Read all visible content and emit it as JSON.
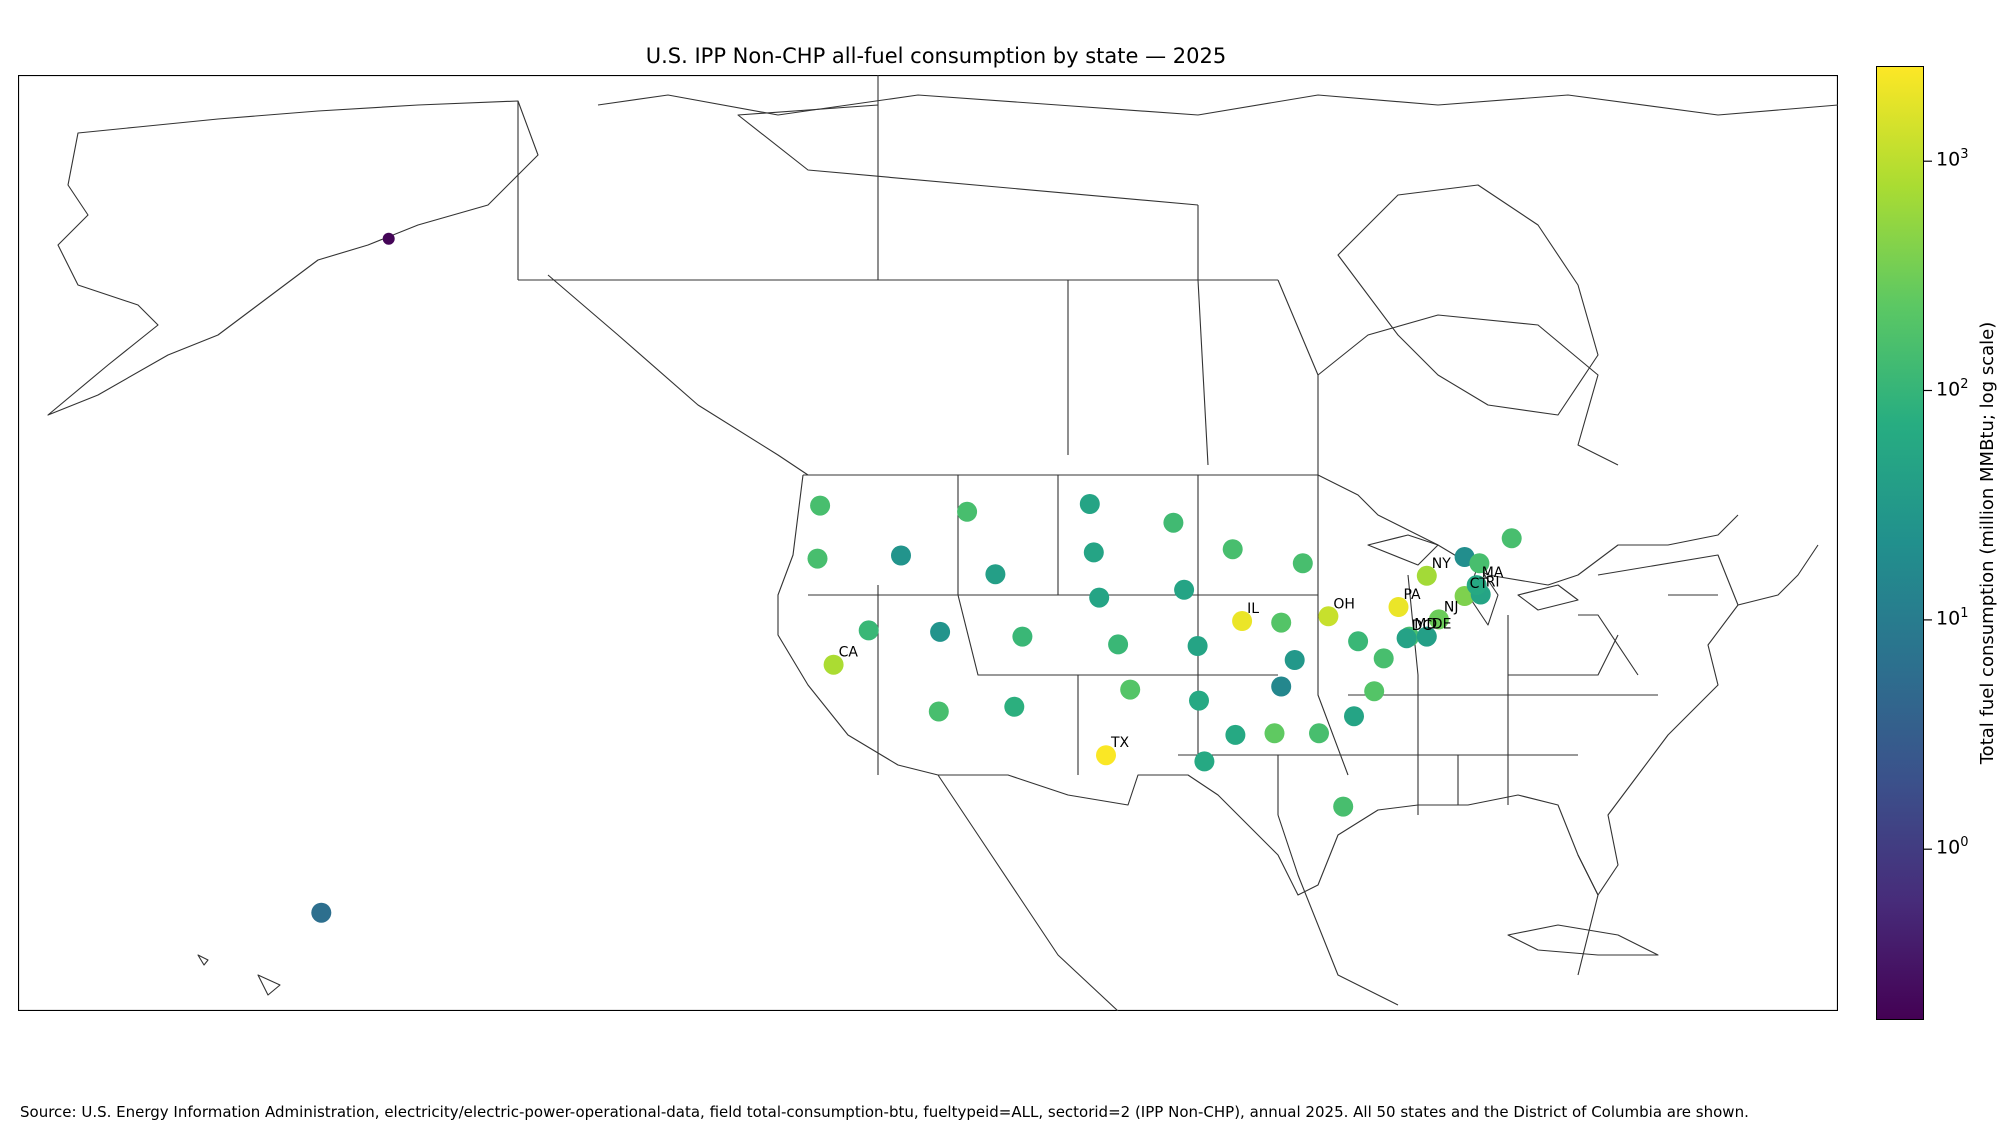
{
  "chart_data": {
    "type": "scatter",
    "title": "U.S. IPP Non-CHP all-fuel consumption by state — 2025",
    "colorbar": {
      "label": "Total fuel consumption (million MMBtu; log scale)",
      "scale": "log",
      "range": [
        0.18,
        2600
      ],
      "colormap": "viridis",
      "ticks": [
        {
          "base": "10",
          "exp": "0",
          "value": 1
        },
        {
          "base": "10",
          "exp": "1",
          "value": 10
        },
        {
          "base": "10",
          "exp": "2",
          "value": 100
        },
        {
          "base": "10",
          "exp": "3",
          "value": 1000
        }
      ]
    },
    "points": [
      {
        "state": "AK",
        "label": "",
        "lon": -152.5,
        "lat": 64.5,
        "value": 0.2
      },
      {
        "state": "HI",
        "label": "",
        "lon": -157.5,
        "lat": 21.3,
        "value": 6
      },
      {
        "state": "WA",
        "label": "",
        "lon": -120.5,
        "lat": 47.4,
        "value": 150
      },
      {
        "state": "OR",
        "label": "",
        "lon": -120.7,
        "lat": 44.0,
        "value": 150
      },
      {
        "state": "CA",
        "label": "CA",
        "lon": -119.5,
        "lat": 37.2,
        "value": 800
      },
      {
        "state": "NV",
        "label": "",
        "lon": -116.9,
        "lat": 39.4,
        "value": 110
      },
      {
        "state": "ID",
        "label": "",
        "lon": -114.5,
        "lat": 44.2,
        "value": 25
      },
      {
        "state": "MT",
        "label": "",
        "lon": -109.6,
        "lat": 47.0,
        "value": 150
      },
      {
        "state": "WY",
        "label": "",
        "lon": -107.5,
        "lat": 43.0,
        "value": 40
      },
      {
        "state": "UT",
        "label": "",
        "lon": -111.6,
        "lat": 39.3,
        "value": 25
      },
      {
        "state": "CO",
        "label": "",
        "lon": -105.5,
        "lat": 39.0,
        "value": 110
      },
      {
        "state": "AZ",
        "label": "",
        "lon": -111.7,
        "lat": 34.2,
        "value": 150
      },
      {
        "state": "NM",
        "label": "",
        "lon": -106.1,
        "lat": 34.5,
        "value": 80
      },
      {
        "state": "ND",
        "label": "",
        "lon": -100.5,
        "lat": 47.5,
        "value": 50
      },
      {
        "state": "SD",
        "label": "",
        "lon": -100.2,
        "lat": 44.4,
        "value": 50
      },
      {
        "state": "NE",
        "label": "",
        "lon": -99.8,
        "lat": 41.5,
        "value": 50
      },
      {
        "state": "KS",
        "label": "",
        "lon": -98.4,
        "lat": 38.5,
        "value": 110
      },
      {
        "state": "OK",
        "label": "",
        "lon": -97.5,
        "lat": 35.6,
        "value": 200
      },
      {
        "state": "TX",
        "label": "TX",
        "lon": -99.3,
        "lat": 31.4,
        "value": 2500
      },
      {
        "state": "MN",
        "label": "",
        "lon": -94.3,
        "lat": 46.3,
        "value": 130
      },
      {
        "state": "IA",
        "label": "",
        "lon": -93.5,
        "lat": 42.0,
        "value": 50
      },
      {
        "state": "MO",
        "label": "",
        "lon": -92.5,
        "lat": 38.4,
        "value": 50
      },
      {
        "state": "AR",
        "label": "",
        "lon": -92.4,
        "lat": 34.9,
        "value": 60
      },
      {
        "state": "LA",
        "label": "",
        "lon": -92.0,
        "lat": 31.0,
        "value": 60
      },
      {
        "state": "WI",
        "label": "",
        "lon": -89.9,
        "lat": 44.6,
        "value": 150
      },
      {
        "state": "IL",
        "label": "IL",
        "lon": -89.2,
        "lat": 40.0,
        "value": 2000
      },
      {
        "state": "MI",
        "label": "",
        "lon": -84.7,
        "lat": 43.7,
        "value": 150
      },
      {
        "state": "IN",
        "label": "",
        "lon": -86.3,
        "lat": 39.9,
        "value": 200
      },
      {
        "state": "OH",
        "label": "OH",
        "lon": -82.8,
        "lat": 40.3,
        "value": 1200
      },
      {
        "state": "KY",
        "label": "",
        "lon": -85.3,
        "lat": 37.5,
        "value": 30
      },
      {
        "state": "TN",
        "label": "",
        "lon": -86.3,
        "lat": 35.8,
        "value": 15
      },
      {
        "state": "MS",
        "label": "",
        "lon": -89.7,
        "lat": 32.7,
        "value": 60
      },
      {
        "state": "AL",
        "label": "",
        "lon": -86.8,
        "lat": 32.8,
        "value": 250
      },
      {
        "state": "GA",
        "label": "",
        "lon": -83.5,
        "lat": 32.8,
        "value": 150
      },
      {
        "state": "FL",
        "label": "",
        "lon": -81.7,
        "lat": 28.1,
        "value": 150
      },
      {
        "state": "SC",
        "label": "",
        "lon": -80.9,
        "lat": 33.9,
        "value": 50
      },
      {
        "state": "NC",
        "label": "",
        "lon": -79.4,
        "lat": 35.5,
        "value": 200
      },
      {
        "state": "VA",
        "label": "",
        "lon": -78.7,
        "lat": 37.6,
        "value": 150
      },
      {
        "state": "WV",
        "label": "",
        "lon": -80.6,
        "lat": 38.7,
        "value": 110
      },
      {
        "state": "PA",
        "label": "PA",
        "lon": -77.6,
        "lat": 40.9,
        "value": 2000
      },
      {
        "state": "NY",
        "label": "NY",
        "lon": -75.5,
        "lat": 42.9,
        "value": 700
      },
      {
        "state": "NJ",
        "label": "NJ",
        "lon": -74.6,
        "lat": 40.1,
        "value": 300
      },
      {
        "state": "MD",
        "label": "MD",
        "lon": -76.8,
        "lat": 39.0,
        "value": 150
      },
      {
        "state": "DE",
        "label": "DE",
        "lon": -75.5,
        "lat": 39.0,
        "value": 40
      },
      {
        "state": "DC",
        "label": "DC",
        "lon": -77.0,
        "lat": 38.9,
        "value": 45
      },
      {
        "state": "CT",
        "label": "CT",
        "lon": -72.7,
        "lat": 41.6,
        "value": 400
      },
      {
        "state": "RI",
        "label": "RI",
        "lon": -71.5,
        "lat": 41.7,
        "value": 50
      },
      {
        "state": "MA",
        "label": "MA",
        "lon": -71.8,
        "lat": 42.3,
        "value": 60
      },
      {
        "state": "VT",
        "label": "",
        "lon": -72.7,
        "lat": 44.1,
        "value": 20
      },
      {
        "state": "NH",
        "label": "",
        "lon": -71.6,
        "lat": 43.7,
        "value": 150
      },
      {
        "state": "ME",
        "label": "",
        "lon": -69.2,
        "lat": 45.3,
        "value": 150
      }
    ]
  },
  "footer": {
    "source": "Source: U.S. Energy Information Administration, electricity/electric-power-operational-data, field total-consumption-btu, fueltypeid=ALL, sectorid=2 (IPP Non-CHP), annual 2025. All 50 states and the District of Columbia are shown."
  }
}
